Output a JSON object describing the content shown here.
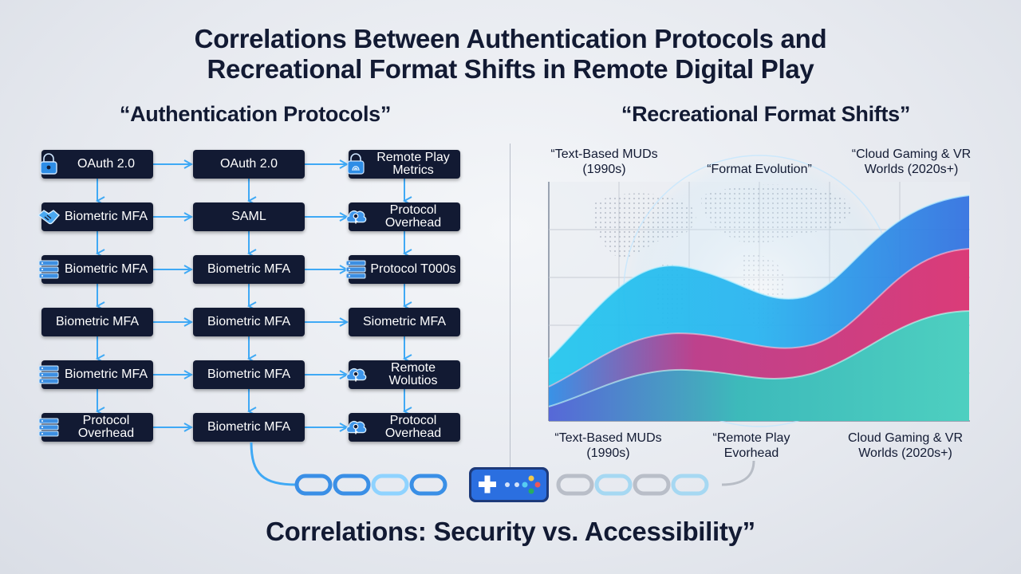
{
  "title": {
    "line1": "Correlations Between Authentication Protocols and",
    "line2": "Recreational Format Shifts in Remote Digital Play"
  },
  "left": {
    "heading": "“Authentication Protocols”",
    "columns": [
      [
        {
          "label": "OAuth 2.0",
          "icon": "padlock-icon"
        },
        {
          "label": "Biometric MFA",
          "icon": "handshake-icon"
        },
        {
          "label": "Biometric MFA",
          "icon": "server-icon"
        },
        {
          "label": "Biometric MFA",
          "icon": ""
        },
        {
          "label": "Biometric MFA",
          "icon": "server-icon"
        },
        {
          "label": "Protocol Overhead",
          "icon": "server-icon"
        }
      ],
      [
        {
          "label": "OAuth 2.0",
          "icon": ""
        },
        {
          "label": "SAML",
          "icon": ""
        },
        {
          "label": "Biometric MFA",
          "icon": ""
        },
        {
          "label": "Biometric MFA",
          "icon": ""
        },
        {
          "label": "Biometric MFA",
          "icon": ""
        },
        {
          "label": "Biometric MFA",
          "icon": ""
        }
      ],
      [
        {
          "label": "Remote Play Metrics",
          "icon": "fingerprint-icon"
        },
        {
          "label": "Protocol Overhead",
          "icon": "cloud-key-icon"
        },
        {
          "label": "Protocol T000s",
          "icon": "server-icon"
        },
        {
          "label": "Siometric MFA",
          "icon": ""
        },
        {
          "label": "Remote Wolutios",
          "icon": "cloud-key-icon"
        },
        {
          "label": "Protocol Overhead",
          "icon": "cloud-key-icon"
        }
      ]
    ]
  },
  "right": {
    "heading": "“Recreational Format Shifts”",
    "top_labels": {
      "left": "“Text-Based MUDs (1990s)",
      "center": "“Format Evolution”",
      "right": "“Cloud Gaming & VR Worlds (2020s+)"
    },
    "bottom_labels": {
      "left": "“Text-Based MUDs (1990s)",
      "center": "“Remote Play Evorhead",
      "right": "Cloud Gaming & VR Worlds (2020s+)"
    }
  },
  "chart_data": {
    "type": "area",
    "title": "",
    "xlabel": "",
    "ylabel": "",
    "series": [
      {
        "color": "#2f6fe0"
      },
      {
        "color": "#e8336e"
      },
      {
        "color": "#34d3c2"
      }
    ]
  },
  "footer": {
    "title": "Correlations: Security vs. Accessibility”"
  },
  "colors": {
    "box_bg": "#121a33",
    "connector": "#3fa9f5",
    "text": "#121a33"
  }
}
